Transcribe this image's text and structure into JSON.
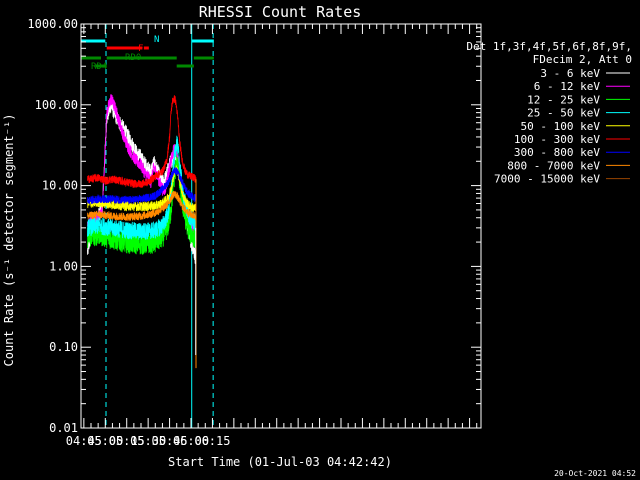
{
  "chart_data": {
    "type": "line",
    "title": "RHESSI Count Rates",
    "xlabel": "Start Time (01-Jul-03 04:42:42)",
    "ylabel": "Count Rate (s⁻¹ detector segment⁻¹)",
    "yscale": "log",
    "ylim": [
      0.01,
      1000
    ],
    "xlim_minutes": [
      43,
      323
    ],
    "x_unit": "minutes after 04:00 UT",
    "ytick_labels": [
      "1000.00",
      "100.00",
      "10.00",
      "1.00",
      "0.10",
      "0.01"
    ],
    "ytick_values": [
      1000,
      100,
      10,
      1,
      0.1,
      0.01
    ],
    "xtick_labels": [
      "04:45",
      "05:00",
      "05:15",
      "05:30",
      "05:45",
      "06:00",
      "06:15"
    ],
    "xtick_values": [
      45,
      60,
      75,
      90,
      105,
      120,
      135
    ],
    "legend_header": [
      "Det 1f,3f,4f,5f,6f,8f,9f,",
      "FDecim 2, Att 0"
    ],
    "series": [
      {
        "name": "3 - 6 keV",
        "color": "#ffffff",
        "x": [
          47.5,
          50,
          55,
          58,
          61,
          64,
          67,
          70,
          73,
          76,
          79,
          82,
          85,
          88,
          90,
          92,
          94,
          96,
          98,
          100,
          102,
          104,
          106,
          108,
          110,
          112,
          114,
          116,
          118,
          120,
          122,
          123.5
        ],
        "y": [
          1.5,
          2.5,
          4,
          5.5,
          70,
          100,
          75,
          60,
          50,
          40,
          32,
          25,
          22,
          18,
          16,
          15,
          19,
          16,
          13,
          11,
          12,
          16,
          20,
          25,
          22,
          14,
          7,
          4.5,
          3,
          2,
          1.6,
          1.2
        ]
      },
      {
        "name": "6 - 12 keV",
        "color": "#ff00ff",
        "x": [
          47.5,
          50,
          55,
          58,
          61,
          64,
          67,
          70,
          73,
          76,
          79,
          82,
          85,
          88,
          90,
          92,
          94,
          96,
          98,
          100,
          102,
          104,
          106,
          108,
          110,
          112,
          114,
          116,
          118,
          120,
          122,
          123.5
        ],
        "y": [
          3,
          3.6,
          4,
          5,
          80,
          120,
          90,
          60,
          40,
          30,
          24,
          20,
          18,
          14,
          13,
          11,
          17,
          14,
          11,
          9,
          9,
          14,
          20,
          28,
          26,
          15,
          7,
          5,
          4,
          3.5,
          3,
          2.8
        ]
      },
      {
        "name": "12 - 25 keV",
        "color": "#00ff00",
        "x": [
          47.5,
          55,
          65,
          75,
          85,
          95,
          100,
          104,
          106,
          108,
          110,
          112,
          114,
          116,
          118,
          120,
          123.5
        ],
        "y": [
          2.3,
          2.5,
          2.2,
          2.0,
          1.9,
          2.0,
          2.3,
          3.2,
          5,
          12,
          20,
          12,
          6,
          4,
          3,
          2.5,
          2.2
        ]
      },
      {
        "name": "25 - 50 keV",
        "color": "#00ffff",
        "x": [
          47.5,
          55,
          65,
          75,
          85,
          95,
          100,
          104,
          106,
          108,
          110,
          112,
          114,
          116,
          118,
          120,
          123.5
        ],
        "y": [
          3,
          3.2,
          3.0,
          2.8,
          2.7,
          2.8,
          3.2,
          4.5,
          8,
          20,
          35,
          20,
          9,
          6,
          4.5,
          3.8,
          3.4
        ]
      },
      {
        "name": "50 - 100 keV",
        "color": "#ffff00",
        "x": [
          47.5,
          55,
          65,
          75,
          85,
          95,
          100,
          104,
          106,
          108,
          110,
          112,
          114,
          116,
          118,
          120,
          123.5
        ],
        "y": [
          6,
          6.2,
          5.8,
          5.6,
          5.5,
          5.6,
          6,
          7,
          9,
          14,
          16,
          12,
          8,
          6.5,
          5.8,
          5.4,
          5.2
        ]
      },
      {
        "name": "100 - 300 keV",
        "color": "#ff0000",
        "x": [
          47.5,
          55,
          61,
          65,
          70,
          75,
          80,
          85,
          90,
          95,
          100,
          103,
          105,
          106,
          107,
          108,
          109,
          110,
          111,
          112,
          114,
          116,
          118,
          120,
          122,
          123.5
        ],
        "y": [
          12,
          12.5,
          11.5,
          12,
          11.5,
          11,
          10.5,
          10.5,
          11,
          13,
          15,
          20,
          40,
          80,
          110,
          120,
          115,
          90,
          60,
          35,
          20,
          15,
          13.5,
          13,
          12.5,
          12
        ]
      },
      {
        "name": "300 - 800 keV",
        "color": "#0000ff",
        "x": [
          47.5,
          55,
          65,
          75,
          85,
          95,
          100,
          104,
          106,
          108,
          110,
          112,
          114,
          116,
          118,
          120,
          123.5
        ],
        "y": [
          6.5,
          6.8,
          6.8,
          6.6,
          6.8,
          7.5,
          9,
          11,
          13,
          15,
          15,
          13,
          11,
          9,
          8,
          7.5,
          7
        ]
      },
      {
        "name": "800 - 7000 keV",
        "color": "#ff8800",
        "x": [
          47.5,
          55,
          65,
          75,
          85,
          95,
          100,
          104,
          106,
          108,
          110,
          112,
          114,
          116,
          118,
          120,
          123.5
        ],
        "y": [
          4.2,
          4.4,
          4.2,
          4.1,
          4.2,
          4.6,
          5.2,
          6,
          7,
          8,
          7.5,
          6.5,
          5.5,
          5,
          4.6,
          4.4,
          4.2
        ]
      },
      {
        "name": "7000 - 15000 keV",
        "color": "#994400",
        "x": [
          123.5
        ],
        "y": [
          10
        ]
      }
    ],
    "attenuator_bars": [
      {
        "label": "N",
        "color": "#00ffff",
        "segments": [
          [
            43,
            60
          ],
          [
            120.5,
            136
          ]
        ]
      },
      {
        "label": "F",
        "color": "#ff0000",
        "segments": [
          [
            61,
            86
          ],
          [
            87,
            90.5
          ]
        ]
      },
      {
        "label": "RD0",
        "color": "#008800",
        "segments": [
          [
            43,
            57
          ],
          [
            61,
            110
          ],
          [
            122,
            136
          ]
        ]
      },
      {
        "label": "RD4",
        "color": "#008800",
        "segments": [
          [
            53,
            61
          ],
          [
            110,
            122
          ]
        ]
      }
    ],
    "vertical_markers": [
      {
        "style": "solid",
        "color": "#00ffff",
        "x": 43
      },
      {
        "style": "dashed",
        "color": "#00ffff",
        "x": 60.5
      },
      {
        "style": "solid",
        "color": "#00ffff",
        "x": 120.5
      },
      {
        "style": "dashed",
        "color": "#00ffff",
        "x": 135.5
      }
    ],
    "timestamp": "20-Oct-2021 04:52"
  }
}
